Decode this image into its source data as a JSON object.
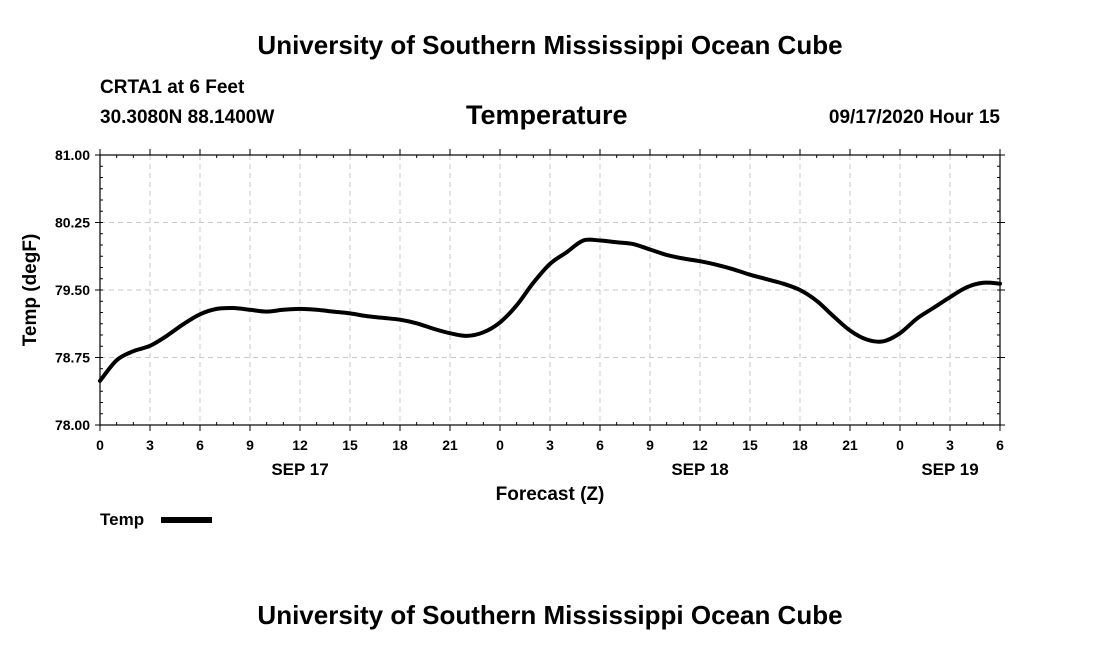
{
  "header": {
    "title": "University of Southern Mississippi Ocean Cube",
    "station": "CRTA1 at 6 Feet",
    "coords": "30.3080N 88.1400W",
    "timestamp": "09/17/2020 Hour 15"
  },
  "footer": {
    "title": "University of Southern Mississippi Ocean Cube"
  },
  "legend": {
    "label": "Temp",
    "color": "#000000"
  },
  "chart_data": {
    "type": "line",
    "title": "Temperature",
    "xlabel": "Forecast (Z)",
    "ylabel": "Temp (degF)",
    "ylim": [
      78.0,
      81.0
    ],
    "xlim": [
      0,
      54
    ],
    "grid": true,
    "y_ticks": [
      "78.00",
      "78.75",
      "79.50",
      "80.25",
      "81.00"
    ],
    "x_ticks": [
      "0",
      "3",
      "6",
      "9",
      "12",
      "15",
      "18",
      "21",
      "0",
      "3",
      "6",
      "9",
      "12",
      "15",
      "18",
      "21",
      "0",
      "3",
      "6"
    ],
    "date_labels": [
      {
        "hour": 12,
        "label": "SEP 17"
      },
      {
        "hour": 36,
        "label": "SEP 18"
      },
      {
        "hour": 51,
        "label": "SEP 19"
      }
    ],
    "series": [
      {
        "name": "Temp",
        "color": "#000000",
        "x": [
          0,
          1,
          2,
          3,
          4,
          5,
          6,
          7,
          8,
          9,
          10,
          11,
          12,
          13,
          14,
          15,
          16,
          17,
          18,
          19,
          20,
          21,
          22,
          23,
          24,
          25,
          26,
          27,
          28,
          29,
          30,
          31,
          32,
          33,
          34,
          35,
          36,
          37,
          38,
          39,
          40,
          41,
          42,
          43,
          44,
          45,
          46,
          47,
          48,
          49,
          50,
          51,
          52,
          53,
          54
        ],
        "values": [
          78.49,
          78.72,
          78.82,
          78.88,
          78.99,
          79.12,
          79.23,
          79.29,
          79.3,
          79.28,
          79.26,
          79.28,
          79.29,
          79.28,
          79.26,
          79.24,
          79.21,
          79.19,
          79.17,
          79.13,
          79.07,
          79.02,
          78.99,
          79.03,
          79.14,
          79.33,
          79.58,
          79.79,
          79.92,
          80.05,
          80.05,
          80.03,
          80.01,
          79.95,
          79.89,
          79.85,
          79.82,
          79.78,
          79.73,
          79.67,
          79.62,
          79.57,
          79.5,
          79.38,
          79.21,
          79.05,
          78.95,
          78.93,
          79.02,
          79.18,
          79.3,
          79.42,
          79.53,
          79.58,
          79.57
        ]
      }
    ]
  }
}
